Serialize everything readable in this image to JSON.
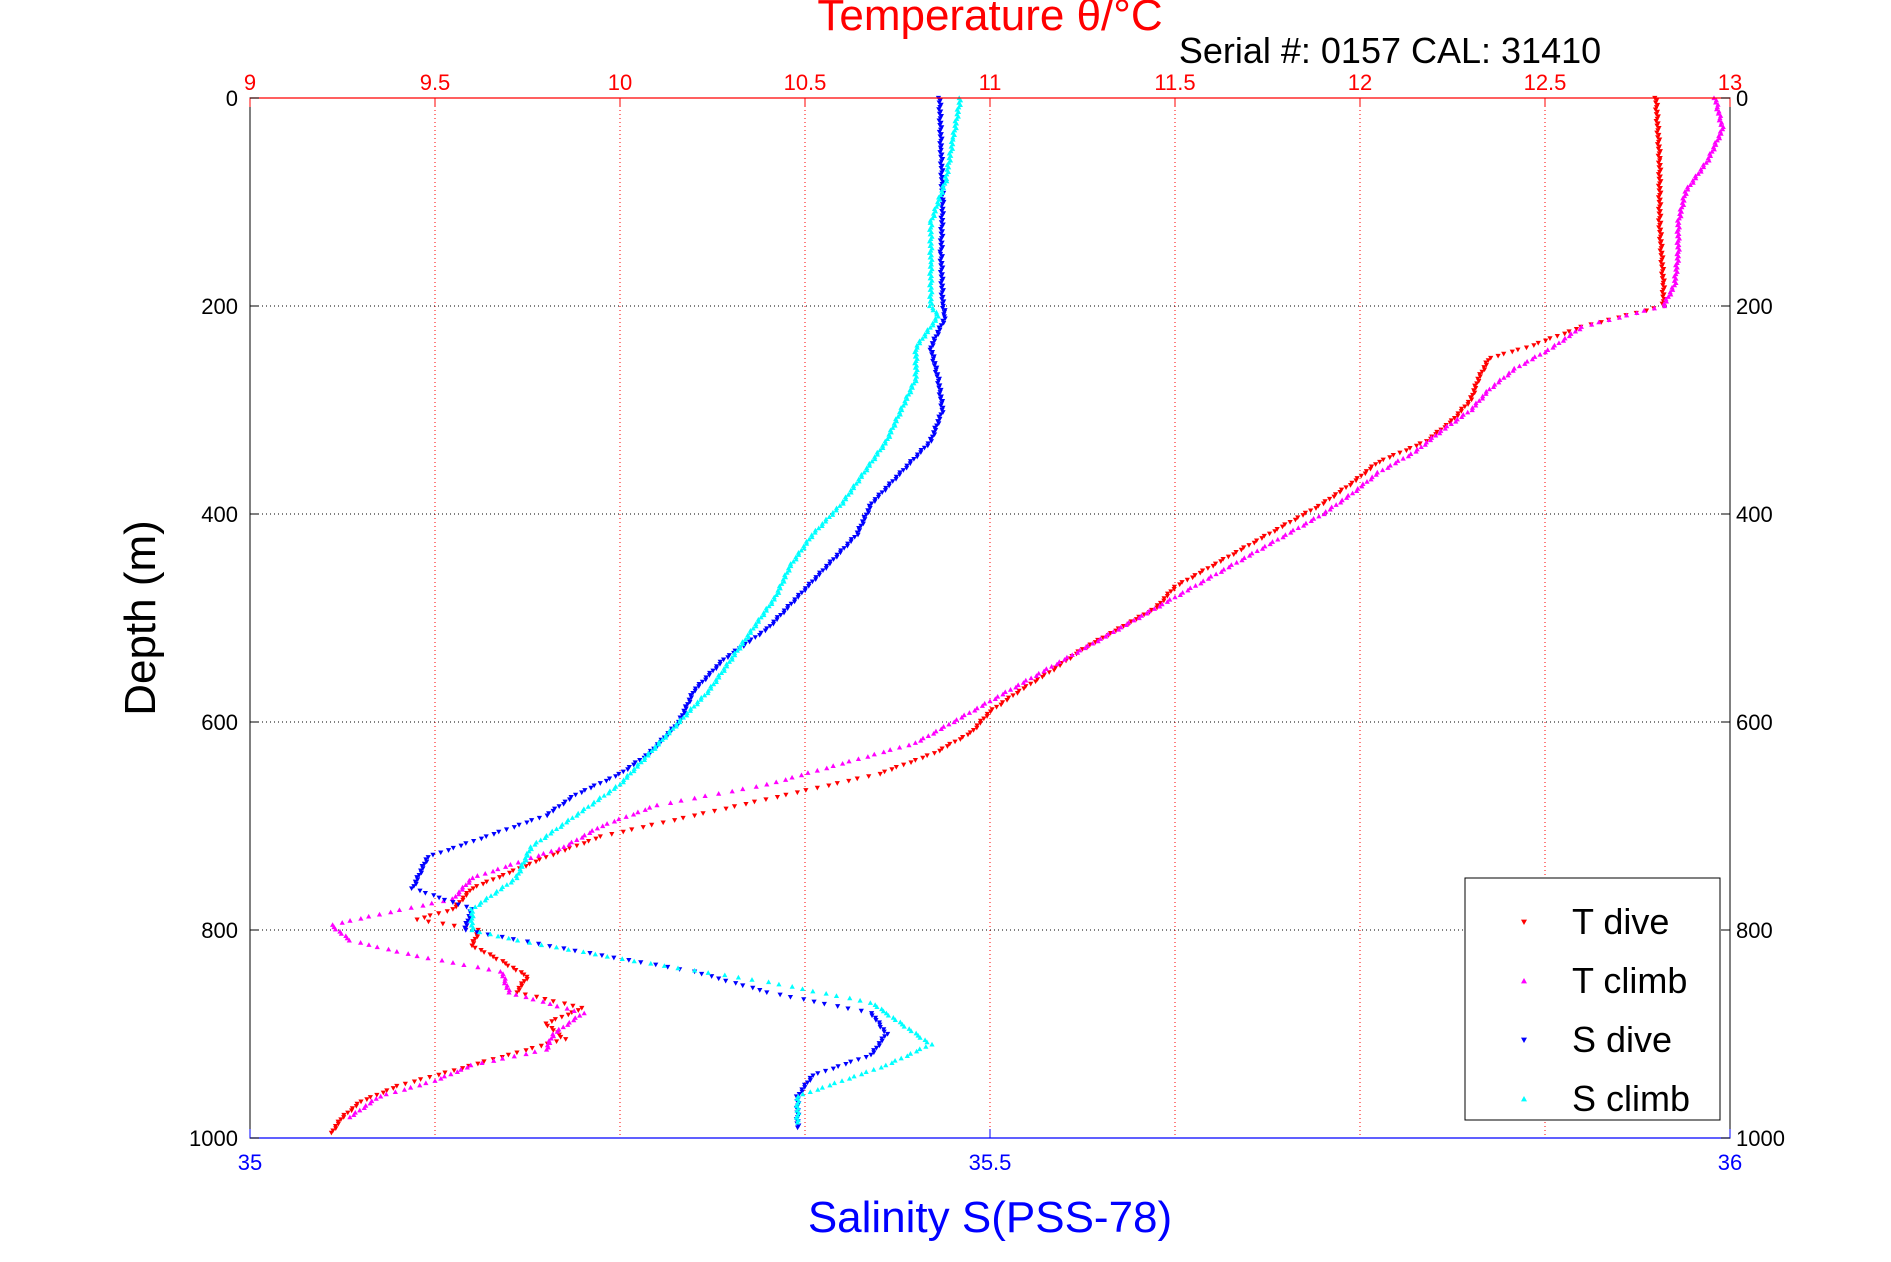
{
  "chart_data": {
    "type": "scatter",
    "title": "Temperature θ/°C",
    "subtitle": "Serial #: 0157  CAL: 31410",
    "ylabel": "Depth (m)",
    "xlabel_bottom": "Salinity S(PSS-78)",
    "colors": {
      "temperature_axis": "#ff0000",
      "salinity_axis": "#0000ff",
      "t_dive": "#ff0000",
      "t_climb": "#ff00ff",
      "s_dive": "#0000ff",
      "s_climb": "#00ffff"
    },
    "axes": {
      "temperature": {
        "range": [
          9,
          13
        ],
        "ticks": [
          9,
          9.5,
          10,
          10.5,
          11,
          11.5,
          12,
          12.5,
          13
        ],
        "tick_labels": [
          "9",
          "9.5",
          "10",
          "10.5",
          "11",
          "11.5",
          "12",
          "12.5",
          "13"
        ]
      },
      "salinity": {
        "range": [
          35,
          36
        ],
        "ticks": [
          35,
          35.5,
          36
        ],
        "tick_labels": [
          "35",
          "35.5",
          "36"
        ]
      },
      "depth": {
        "range": [
          0,
          1000
        ],
        "reversed": true,
        "ticks": [
          0,
          200,
          400,
          600,
          800,
          1000
        ],
        "tick_labels": [
          "0",
          "200",
          "400",
          "600",
          "800",
          "1000"
        ]
      }
    },
    "grid": true,
    "legend": {
      "position": "bottom-right",
      "entries": [
        {
          "label": "T dive",
          "series": "t_dive",
          "marker": "triangle-down"
        },
        {
          "label": "T climb",
          "series": "t_climb",
          "marker": "triangle-up"
        },
        {
          "label": "S dive",
          "series": "s_dive",
          "marker": "triangle-down"
        },
        {
          "label": "S climb",
          "series": "s_climb",
          "marker": "triangle-up"
        }
      ]
    },
    "series": [
      {
        "id": "t_dive",
        "axis": "temperature",
        "points": [
          [
            12.8,
            0
          ],
          [
            12.81,
            60
          ],
          [
            12.81,
            120
          ],
          [
            12.82,
            180
          ],
          [
            12.82,
            200
          ],
          [
            12.6,
            220
          ],
          [
            12.45,
            240
          ],
          [
            12.35,
            250
          ],
          [
            12.32,
            270
          ],
          [
            12.3,
            290
          ],
          [
            12.25,
            310
          ],
          [
            12.18,
            330
          ],
          [
            12.05,
            350
          ],
          [
            11.98,
            370
          ],
          [
            11.9,
            390
          ],
          [
            11.8,
            410
          ],
          [
            11.7,
            430
          ],
          [
            11.6,
            450
          ],
          [
            11.5,
            470
          ],
          [
            11.45,
            490
          ],
          [
            11.35,
            510
          ],
          [
            11.25,
            530
          ],
          [
            11.17,
            550
          ],
          [
            11.08,
            570
          ],
          [
            11.0,
            590
          ],
          [
            10.95,
            610
          ],
          [
            10.85,
            630
          ],
          [
            10.7,
            650
          ],
          [
            10.45,
            670
          ],
          [
            10.2,
            690
          ],
          [
            9.95,
            710
          ],
          [
            9.8,
            730
          ],
          [
            9.6,
            760
          ],
          [
            9.55,
            780
          ],
          [
            9.45,
            790
          ],
          [
            9.62,
            800
          ],
          [
            9.6,
            815
          ],
          [
            9.68,
            830
          ],
          [
            9.75,
            845
          ],
          [
            9.72,
            860
          ],
          [
            9.9,
            875
          ],
          [
            9.8,
            890
          ],
          [
            9.85,
            905
          ],
          [
            9.7,
            920
          ],
          [
            9.55,
            935
          ],
          [
            9.4,
            950
          ],
          [
            9.3,
            965
          ],
          [
            9.25,
            980
          ],
          [
            9.22,
            995
          ]
        ]
      },
      {
        "id": "t_climb",
        "axis": "temperature",
        "points": [
          [
            12.96,
            0
          ],
          [
            12.98,
            30
          ],
          [
            12.94,
            60
          ],
          [
            12.88,
            90
          ],
          [
            12.86,
            120
          ],
          [
            12.86,
            150
          ],
          [
            12.85,
            180
          ],
          [
            12.82,
            200
          ],
          [
            12.6,
            220
          ],
          [
            12.52,
            240
          ],
          [
            12.42,
            260
          ],
          [
            12.35,
            280
          ],
          [
            12.3,
            300
          ],
          [
            12.22,
            320
          ],
          [
            12.15,
            340
          ],
          [
            12.05,
            360
          ],
          [
            11.98,
            380
          ],
          [
            11.9,
            400
          ],
          [
            11.8,
            420
          ],
          [
            11.7,
            440
          ],
          [
            11.6,
            460
          ],
          [
            11.5,
            480
          ],
          [
            11.4,
            500
          ],
          [
            11.3,
            520
          ],
          [
            11.2,
            540
          ],
          [
            11.1,
            560
          ],
          [
            11.0,
            580
          ],
          [
            10.9,
            600
          ],
          [
            10.8,
            620
          ],
          [
            10.6,
            640
          ],
          [
            10.4,
            660
          ],
          [
            10.1,
            680
          ],
          [
            9.95,
            700
          ],
          [
            9.85,
            720
          ],
          [
            9.6,
            750
          ],
          [
            9.55,
            770
          ],
          [
            9.35,
            785
          ],
          [
            9.22,
            795
          ],
          [
            9.27,
            810
          ],
          [
            9.45,
            825
          ],
          [
            9.68,
            840
          ],
          [
            9.7,
            860
          ],
          [
            9.9,
            880
          ],
          [
            9.82,
            900
          ],
          [
            9.8,
            915
          ],
          [
            9.6,
            930
          ],
          [
            9.5,
            945
          ],
          [
            9.35,
            960
          ],
          [
            9.27,
            980
          ]
        ]
      },
      {
        "id": "s_dive",
        "axis": "salinity",
        "points": [
          [
            35.466,
            0
          ],
          [
            35.467,
            50
          ],
          [
            35.468,
            100
          ],
          [
            35.467,
            150
          ],
          [
            35.468,
            200
          ],
          [
            35.47,
            210
          ],
          [
            35.46,
            240
          ],
          [
            35.465,
            270
          ],
          [
            35.468,
            300
          ],
          [
            35.46,
            330
          ],
          [
            35.44,
            360
          ],
          [
            35.42,
            390
          ],
          [
            35.41,
            420
          ],
          [
            35.39,
            450
          ],
          [
            35.37,
            480
          ],
          [
            35.35,
            510
          ],
          [
            35.32,
            540
          ],
          [
            35.3,
            570
          ],
          [
            35.29,
            600
          ],
          [
            35.27,
            630
          ],
          [
            35.25,
            650
          ],
          [
            35.22,
            670
          ],
          [
            35.2,
            690
          ],
          [
            35.16,
            710
          ],
          [
            35.12,
            730
          ],
          [
            35.11,
            760
          ],
          [
            35.15,
            780
          ],
          [
            35.145,
            800
          ],
          [
            35.22,
            820
          ],
          [
            35.3,
            840
          ],
          [
            35.35,
            860
          ],
          [
            35.42,
            880
          ],
          [
            35.43,
            900
          ],
          [
            35.42,
            920
          ],
          [
            35.38,
            940
          ],
          [
            35.37,
            960
          ],
          [
            35.37,
            980
          ],
          [
            35.37,
            990
          ]
        ]
      },
      {
        "id": "s_climb",
        "axis": "salinity",
        "points": [
          [
            35.48,
            0
          ],
          [
            35.475,
            40
          ],
          [
            35.47,
            80
          ],
          [
            35.46,
            120
          ],
          [
            35.46,
            160
          ],
          [
            35.46,
            200
          ],
          [
            35.465,
            210
          ],
          [
            35.45,
            240
          ],
          [
            35.45,
            270
          ],
          [
            35.44,
            300
          ],
          [
            35.43,
            330
          ],
          [
            35.415,
            360
          ],
          [
            35.4,
            390
          ],
          [
            35.38,
            420
          ],
          [
            35.365,
            450
          ],
          [
            35.355,
            480
          ],
          [
            35.34,
            510
          ],
          [
            35.325,
            540
          ],
          [
            35.31,
            570
          ],
          [
            35.29,
            600
          ],
          [
            35.27,
            630
          ],
          [
            35.25,
            660
          ],
          [
            35.22,
            690
          ],
          [
            35.19,
            720
          ],
          [
            35.18,
            750
          ],
          [
            35.15,
            780
          ],
          [
            35.15,
            800
          ],
          [
            35.18,
            810
          ],
          [
            35.26,
            830
          ],
          [
            35.35,
            850
          ],
          [
            35.42,
            870
          ],
          [
            35.43,
            880
          ],
          [
            35.46,
            910
          ],
          [
            35.43,
            930
          ],
          [
            35.37,
            960
          ],
          [
            35.37,
            985
          ]
        ]
      }
    ]
  }
}
